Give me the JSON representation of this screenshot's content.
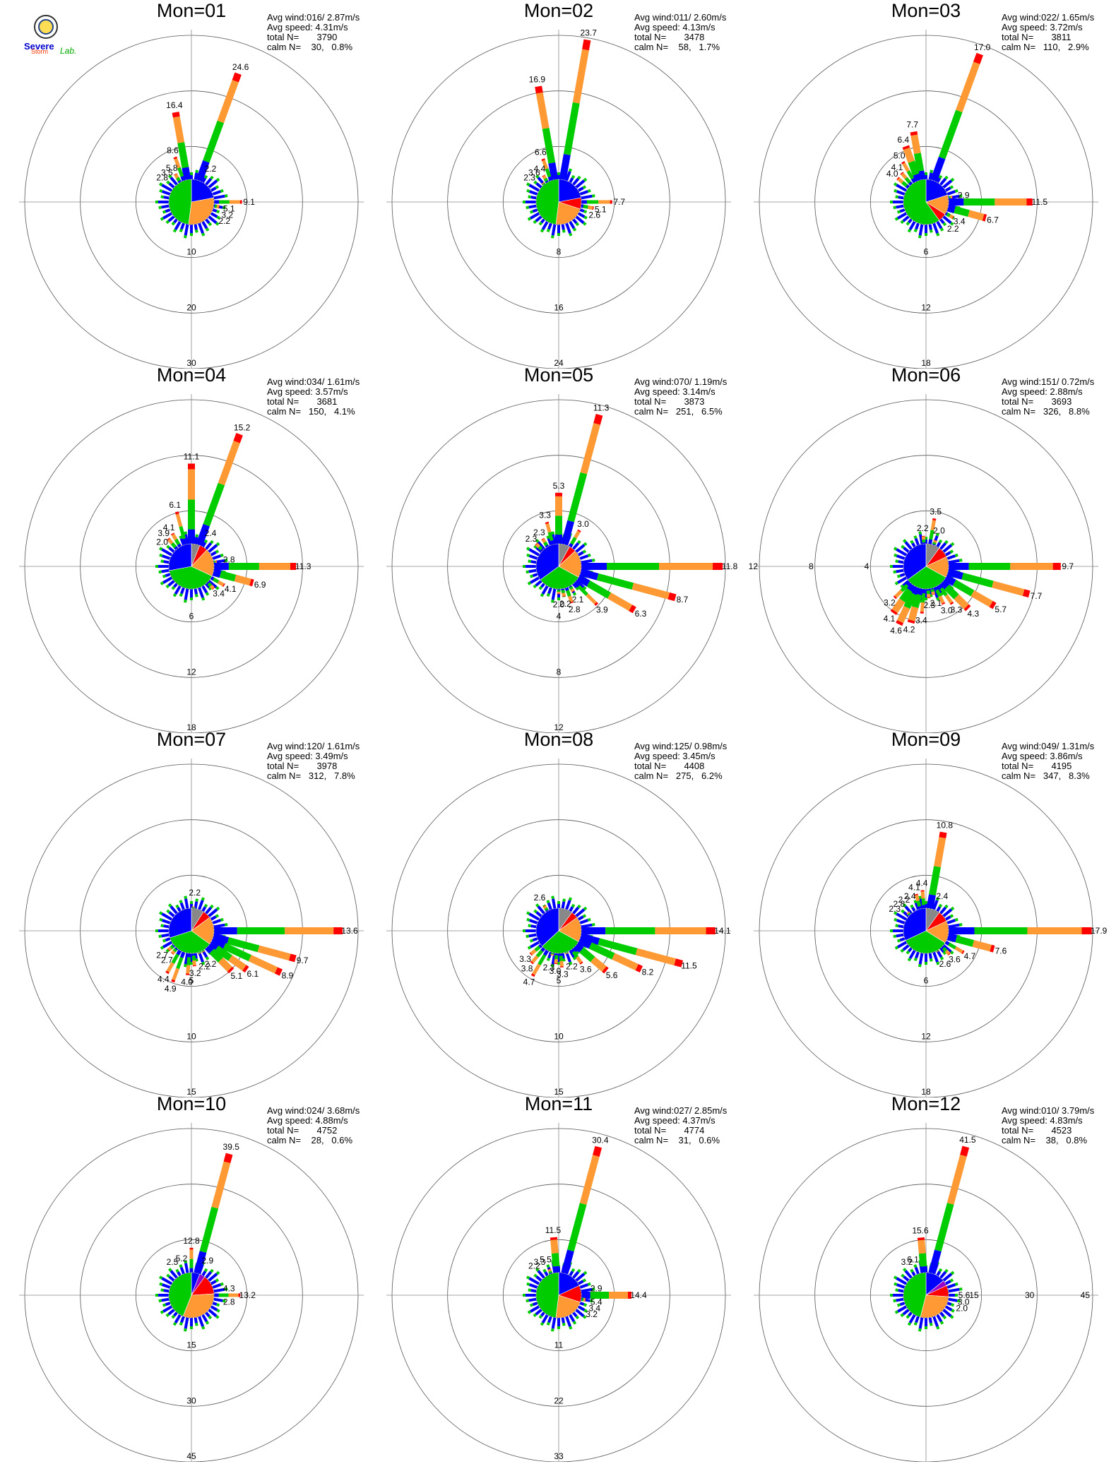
{
  "logo": {
    "line1": "Severe",
    "line2": "Storm",
    "line3": "Lab."
  },
  "colors": {
    "blue": "#0000ff",
    "green": "#00cc00",
    "orange": "#ff9933",
    "red": "#ff0000",
    "purple": "#9900cc",
    "gray": "#888888",
    "pink": "#ff6688",
    "black": "#000000",
    "darkgreen": "#007700"
  },
  "chart_data": [
    {
      "type": "wind-rose",
      "title": "Mon=01",
      "stats": {
        "avg_wind": "Avg wind:016/ 2.87m/s",
        "avg_speed": "Avg speed: 4.31m/s",
        "total": "total N=       3790",
        "calm": "calm N=    30,   0.8%"
      },
      "rings": [
        10,
        20,
        30
      ],
      "ring_label_angle": 180,
      "peaks": [
        {
          "dir": 20,
          "value": 24.6
        },
        {
          "dir": 350,
          "value": 16.4
        },
        {
          "dir": 340,
          "value": 8.6
        },
        {
          "dir": 330,
          "value": 5.8
        },
        {
          "dir": 320,
          "value": 3.5
        },
        {
          "dir": 310,
          "value": 2.8
        },
        {
          "dir": 30,
          "value": 2.2
        },
        {
          "dir": 90,
          "value": 9.1
        },
        {
          "dir": 100,
          "value": 5.1
        },
        {
          "dir": 110,
          "value": 3.2
        },
        {
          "dir": 120,
          "value": 2.2
        }
      ],
      "pie": [
        {
          "color": "blue",
          "value": 22
        },
        {
          "color": "orange",
          "value": 30
        },
        {
          "color": "green",
          "value": 48
        }
      ]
    },
    {
      "type": "wind-rose",
      "title": "Mon=02",
      "stats": {
        "avg_wind": "Avg wind:011/ 2.60m/s",
        "avg_speed": "Avg speed: 4.13m/s",
        "total": "total N=       3478",
        "calm": "calm N=    58,   1.7%"
      },
      "rings": [
        8,
        16,
        24
      ],
      "ring_label_angle": 180,
      "peaks": [
        {
          "dir": 10,
          "value": 23.7
        },
        {
          "dir": 350,
          "value": 16.9
        },
        {
          "dir": 340,
          "value": 6.6
        },
        {
          "dir": 330,
          "value": 4.4
        },
        {
          "dir": 320,
          "value": 3.6
        },
        {
          "dir": 310,
          "value": 2.3
        },
        {
          "dir": 90,
          "value": 7.7
        },
        {
          "dir": 100,
          "value": 5.1
        },
        {
          "dir": 110,
          "value": 2.6
        }
      ],
      "pie": [
        {
          "color": "blue",
          "value": 22
        },
        {
          "color": "red",
          "value": 8
        },
        {
          "color": "orange",
          "value": 22
        },
        {
          "color": "green",
          "value": 48
        }
      ]
    },
    {
      "type": "wind-rose",
      "title": "Mon=03",
      "stats": {
        "avg_wind": "Avg wind:022/ 1.65m/s",
        "avg_speed": "Avg speed: 3.72m/s",
        "total": "total N=       3811",
        "calm": "calm N=   110,   2.9%"
      },
      "rings": [
        6,
        12,
        18
      ],
      "ring_label_angle": 180,
      "peaks": [
        {
          "dir": 20,
          "value": 17.0
        },
        {
          "dir": 350,
          "value": 7.7
        },
        {
          "dir": 340,
          "value": 6.4
        },
        {
          "dir": 330,
          "value": 5.0
        },
        {
          "dir": 320,
          "value": 4.1
        },
        {
          "dir": 310,
          "value": 4.0
        },
        {
          "dir": 80,
          "value": 2.9
        },
        {
          "dir": 90,
          "value": 11.5
        },
        {
          "dir": 105,
          "value": 6.7
        },
        {
          "dir": 120,
          "value": 3.4
        },
        {
          "dir": 135,
          "value": 2.2
        }
      ],
      "pie": [
        {
          "color": "blue",
          "value": 20
        },
        {
          "color": "orange",
          "value": 14
        },
        {
          "color": "red",
          "value": 6
        },
        {
          "color": "green",
          "value": 60
        }
      ]
    },
    {
      "type": "wind-rose",
      "title": "Mon=04",
      "stats": {
        "avg_wind": "Avg wind:034/ 1.61m/s",
        "avg_speed": "Avg speed: 3.57m/s",
        "total": "total N=       3681",
        "calm": "calm N=   150,   4.1%"
      },
      "rings": [
        6,
        12,
        18
      ],
      "ring_label_angle": 180,
      "peaks": [
        {
          "dir": 20,
          "value": 15.2
        },
        {
          "dir": 0,
          "value": 11.1
        },
        {
          "dir": 345,
          "value": 6.1
        },
        {
          "dir": 330,
          "value": 4.1
        },
        {
          "dir": 320,
          "value": 3.9
        },
        {
          "dir": 310,
          "value": 2.0
        },
        {
          "dir": 30,
          "value": 2.4
        },
        {
          "dir": 80,
          "value": 2.8
        },
        {
          "dir": 90,
          "value": 11.3
        },
        {
          "dir": 105,
          "value": 6.9
        },
        {
          "dir": 120,
          "value": 4.1
        },
        {
          "dir": 135,
          "value": 3.4
        }
      ],
      "pie": [
        {
          "color": "gray",
          "value": 6
        },
        {
          "color": "red",
          "value": 6
        },
        {
          "color": "orange",
          "value": 20
        },
        {
          "color": "green",
          "value": 40
        },
        {
          "color": "blue",
          "value": 28
        }
      ]
    },
    {
      "type": "wind-rose",
      "title": "Mon=05",
      "stats": {
        "avg_wind": "Avg wind:070/ 1.19m/s",
        "avg_speed": "Avg speed: 3.14m/s",
        "total": "total N=       3873",
        "calm": "calm N=   251,   6.5%"
      },
      "rings": [
        4,
        8,
        12
      ],
      "ring_label_angle": 180,
      "peaks": [
        {
          "dir": 15,
          "value": 11.3
        },
        {
          "dir": 0,
          "value": 5.3
        },
        {
          "dir": 345,
          "value": 3.3
        },
        {
          "dir": 330,
          "value": 2.3
        },
        {
          "dir": 315,
          "value": 2.3
        },
        {
          "dir": 30,
          "value": 3.0
        },
        {
          "dir": 90,
          "value": 11.8
        },
        {
          "dir": 105,
          "value": 8.7
        },
        {
          "dir": 120,
          "value": 6.3
        },
        {
          "dir": 135,
          "value": 3.9
        },
        {
          "dir": 150,
          "value": 2.1
        },
        {
          "dir": 160,
          "value": 2.8
        },
        {
          "dir": 170,
          "value": 2.2
        },
        {
          "dir": 180,
          "value": 2.0
        }
      ],
      "pie": [
        {
          "color": "gray",
          "value": 8
        },
        {
          "color": "red",
          "value": 5
        },
        {
          "color": "orange",
          "value": 20
        },
        {
          "color": "green",
          "value": 32
        },
        {
          "color": "blue",
          "value": 35
        }
      ]
    },
    {
      "type": "wind-rose",
      "title": "Mon=06",
      "stats": {
        "avg_wind": "Avg wind:151/ 0.72m/s",
        "avg_speed": "Avg speed: 2.88m/s",
        "total": "total N=       3693",
        "calm": "calm N=   326,   8.8%"
      },
      "rings": [
        4,
        8,
        12
      ],
      "ring_label_angle": 270,
      "peaks": [
        {
          "dir": 10,
          "value": 3.5
        },
        {
          "dir": 355,
          "value": 2.2
        },
        {
          "dir": 20,
          "value": 2.0
        },
        {
          "dir": 90,
          "value": 9.7
        },
        {
          "dir": 105,
          "value": 7.7
        },
        {
          "dir": 120,
          "value": 5.7
        },
        {
          "dir": 135,
          "value": 4.3
        },
        {
          "dir": 145,
          "value": 3.3
        },
        {
          "dir": 155,
          "value": 3.0
        },
        {
          "dir": 165,
          "value": 2.1
        },
        {
          "dir": 175,
          "value": 2.3
        },
        {
          "dir": 185,
          "value": 3.4
        },
        {
          "dir": 195,
          "value": 4.2
        },
        {
          "dir": 205,
          "value": 4.6
        },
        {
          "dir": 215,
          "value": 4.1
        },
        {
          "dir": 225,
          "value": 3.2
        }
      ],
      "pie": [
        {
          "color": "gray",
          "value": 10
        },
        {
          "color": "red",
          "value": 8
        },
        {
          "color": "orange",
          "value": 15
        },
        {
          "color": "green",
          "value": 32
        },
        {
          "color": "blue",
          "value": 35
        }
      ]
    },
    {
      "type": "wind-rose",
      "title": "Mon=07",
      "stats": {
        "avg_wind": "Avg wind:120/ 1.61m/s",
        "avg_speed": "Avg speed: 3.49m/s",
        "total": "total N=       3978",
        "calm": "calm N=   312,   7.8%"
      },
      "rings": [
        5,
        10,
        15
      ],
      "ring_label_angle": 180,
      "peaks": [
        {
          "dir": 5,
          "value": 2.2
        },
        {
          "dir": 90,
          "value": 13.6
        },
        {
          "dir": 105,
          "value": 9.7
        },
        {
          "dir": 115,
          "value": 8.9
        },
        {
          "dir": 125,
          "value": 6.1
        },
        {
          "dir": 135,
          "value": 5.1
        },
        {
          "dir": 150,
          "value": 2.2
        },
        {
          "dir": 160,
          "value": 2.2
        },
        {
          "dir": 175,
          "value": 3.2
        },
        {
          "dir": 185,
          "value": 4.0
        },
        {
          "dir": 200,
          "value": 4.9
        },
        {
          "dir": 210,
          "value": 4.4
        },
        {
          "dir": 220,
          "value": 2.7
        },
        {
          "dir": 230,
          "value": 2.7
        }
      ],
      "pie": [
        {
          "color": "gray",
          "value": 9
        },
        {
          "color": "red",
          "value": 6
        },
        {
          "color": "orange",
          "value": 20
        },
        {
          "color": "green",
          "value": 35
        },
        {
          "color": "blue",
          "value": 30
        }
      ]
    },
    {
      "type": "wind-rose",
      "title": "Mon=08",
      "stats": {
        "avg_wind": "Avg wind:125/ 0.98m/s",
        "avg_speed": "Avg speed: 3.45m/s",
        "total": "total N=       4408",
        "calm": "calm N=   275,   6.2%"
      },
      "rings": [
        5,
        10,
        15
      ],
      "ring_label_angle": 180,
      "peaks": [
        {
          "dir": 330,
          "value": 2.6
        },
        {
          "dir": 90,
          "value": 14.1
        },
        {
          "dir": 105,
          "value": 11.5
        },
        {
          "dir": 115,
          "value": 8.2
        },
        {
          "dir": 130,
          "value": 5.6
        },
        {
          "dir": 145,
          "value": 3.6
        },
        {
          "dir": 160,
          "value": 2.2
        },
        {
          "dir": 175,
          "value": 3.3
        },
        {
          "dir": 185,
          "value": 3.0
        },
        {
          "dir": 195,
          "value": 2.3
        },
        {
          "dir": 210,
          "value": 4.7
        },
        {
          "dir": 220,
          "value": 3.8
        },
        {
          "dir": 230,
          "value": 3.3
        }
      ],
      "pie": [
        {
          "color": "gray",
          "value": 10
        },
        {
          "color": "red",
          "value": 5
        },
        {
          "color": "orange",
          "value": 18
        },
        {
          "color": "green",
          "value": 30
        },
        {
          "color": "blue",
          "value": 37
        }
      ]
    },
    {
      "type": "wind-rose",
      "title": "Mon=09",
      "stats": {
        "avg_wind": "Avg wind:049/ 1.31m/s",
        "avg_speed": "Avg speed: 3.86m/s",
        "total": "total N=       4195",
        "calm": "calm N=   347,   8.3%"
      },
      "rings": [
        6,
        12,
        18
      ],
      "ring_label_angle": 180,
      "peaks": [
        {
          "dir": 10,
          "value": 10.8
        },
        {
          "dir": 355,
          "value": 4.4
        },
        {
          "dir": 345,
          "value": 4.1
        },
        {
          "dir": 335,
          "value": 2.4
        },
        {
          "dir": 325,
          "value": 2.2
        },
        {
          "dir": 315,
          "value": 2.8
        },
        {
          "dir": 305,
          "value": 2.3
        },
        {
          "dir": 25,
          "value": 2.4
        },
        {
          "dir": 90,
          "value": 17.9
        },
        {
          "dir": 105,
          "value": 7.6
        },
        {
          "dir": 120,
          "value": 4.7
        },
        {
          "dir": 135,
          "value": 3.6
        },
        {
          "dir": 150,
          "value": 2.6
        }
      ],
      "pie": [
        {
          "color": "gray",
          "value": 10
        },
        {
          "color": "red",
          "value": 8
        },
        {
          "color": "orange",
          "value": 16
        },
        {
          "color": "green",
          "value": 34
        },
        {
          "color": "blue",
          "value": 32
        }
      ]
    },
    {
      "type": "wind-rose",
      "title": "Mon=10",
      "stats": {
        "avg_wind": "Avg wind:024/ 3.68m/s",
        "avg_speed": "Avg speed: 4.88m/s",
        "total": "total N=       4752",
        "calm": "calm N=    28,   0.6%"
      },
      "rings": [
        15,
        30,
        45
      ],
      "ring_label_angle": 180,
      "peaks": [
        {
          "dir": 15,
          "value": 39.5
        },
        {
          "dir": 0,
          "value": 12.8
        },
        {
          "dir": 345,
          "value": 5.2
        },
        {
          "dir": 330,
          "value": 2.5
        },
        {
          "dir": 25,
          "value": 2.9
        },
        {
          "dir": 80,
          "value": 4.3
        },
        {
          "dir": 90,
          "value": 13.2
        },
        {
          "dir": 100,
          "value": 2.8
        }
      ],
      "pie": [
        {
          "color": "blue",
          "value": 6
        },
        {
          "color": "purple",
          "value": 4
        },
        {
          "color": "red",
          "value": 14
        },
        {
          "color": "orange",
          "value": 32
        },
        {
          "color": "green",
          "value": 44
        }
      ]
    },
    {
      "type": "wind-rose",
      "title": "Mon=11",
      "stats": {
        "avg_wind": "Avg wind:027/ 2.85m/s",
        "avg_speed": "Avg speed: 4.37m/s",
        "total": "total N=       4774",
        "calm": "calm N=    31,   0.6%"
      },
      "rings": [
        11,
        22,
        33
      ],
      "ring_label_angle": 180,
      "peaks": [
        {
          "dir": 15,
          "value": 30.4
        },
        {
          "dir": 355,
          "value": 11.5
        },
        {
          "dir": 340,
          "value": 5.5
        },
        {
          "dir": 330,
          "value": 3.3
        },
        {
          "dir": 320,
          "value": 2.2
        },
        {
          "dir": 80,
          "value": 2.9
        },
        {
          "dir": 90,
          "value": 14.4
        },
        {
          "dir": 100,
          "value": 5.4
        },
        {
          "dir": 110,
          "value": 3.4
        },
        {
          "dir": 120,
          "value": 3.2
        }
      ],
      "pie": [
        {
          "color": "blue",
          "value": 18
        },
        {
          "color": "red",
          "value": 12
        },
        {
          "color": "orange",
          "value": 22
        },
        {
          "color": "green",
          "value": 48
        }
      ]
    },
    {
      "type": "wind-rose",
      "title": "Mon=12",
      "stats": {
        "avg_wind": "Avg wind:010/ 3.79m/s",
        "avg_speed": "Avg speed: 4.83m/s",
        "total": "total N=       4523",
        "calm": "calm N=    38,   0.8%"
      },
      "rings": [
        15,
        30,
        45
      ],
      "ring_label_angle": 90,
      "peaks": [
        {
          "dir": 15,
          "value": 41.5
        },
        {
          "dir": 355,
          "value": 15.6
        },
        {
          "dir": 340,
          "value": 6.1
        },
        {
          "dir": 330,
          "value": 3.2
        },
        {
          "dir": 90,
          "value": 5.6
        },
        {
          "dir": 100,
          "value": 3.0
        },
        {
          "dir": 110,
          "value": 2.0
        }
      ],
      "pie": [
        {
          "color": "blue",
          "value": 14
        },
        {
          "color": "purple",
          "value": 4
        },
        {
          "color": "red",
          "value": 8
        },
        {
          "color": "orange",
          "value": 28
        },
        {
          "color": "green",
          "value": 46
        }
      ]
    }
  ]
}
